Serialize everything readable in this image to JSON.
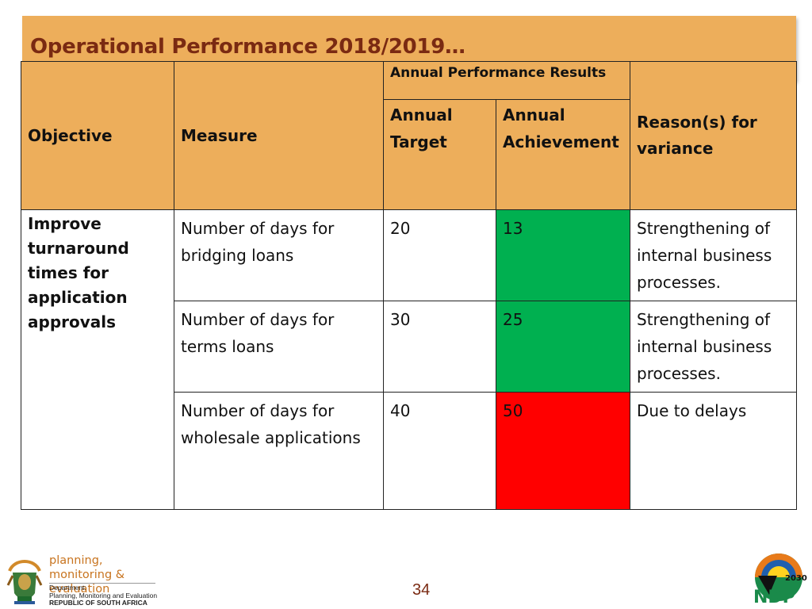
{
  "slide": {
    "title": "Operational Performance 2018/2019…",
    "page_number": "34"
  },
  "table": {
    "headers": {
      "objective": "Objective",
      "measure": "Measure",
      "annual_performance_results": "Annual Performance Results",
      "annual_target": "Annual Target",
      "annual_achievement": "Annual Achievement",
      "reason": "Reason(s) for variance"
    },
    "objective": "Improve turnaround times for application approvals",
    "rows": [
      {
        "measure": "Number of days for bridging loans",
        "target": "20",
        "achievement": "13",
        "achievement_status_color": "#00b050",
        "reason": "Strengthening of internal business processes."
      },
      {
        "measure": "Number of days for terms loans",
        "target": "30",
        "achievement": "25",
        "achievement_status_color": "#00b050",
        "reason": "Strengthening of internal business processes."
      },
      {
        "measure": "Number of days for wholesale applications",
        "target": "40",
        "achievement": "50",
        "achievement_status_color": "#ff0000",
        "reason": "Due to delays"
      }
    ]
  },
  "footer": {
    "dpme_brand": "planning, monitoring & evaluation",
    "dpme_line1": "Department:",
    "dpme_line2": "Planning, Monitoring and Evaluation",
    "dpme_line3": "REPUBLIC OF SOUTH AFRICA",
    "ndp_logo_text": "NDP",
    "ndp_logo_year": "2030",
    "coat_of_arms_icon": "coat-of-arms-icon",
    "ndp_icon": "ndp-2030-logo-icon"
  },
  "colors": {
    "header_bg": "#edae5b",
    "title_color": "#7a2a12",
    "achieved_green": "#00b050",
    "missed_red": "#ff0000"
  }
}
